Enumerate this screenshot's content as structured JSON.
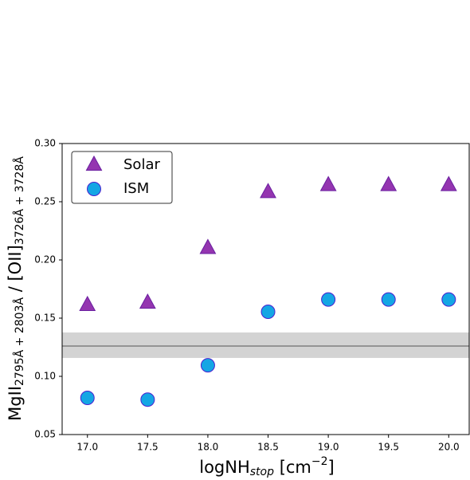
{
  "chart_data": {
    "type": "scatter",
    "xlabel_parts": [
      {
        "text": "logNH"
      },
      {
        "text": "stop",
        "style": "sub"
      },
      {
        "text": " [cm"
      },
      {
        "text": "−2",
        "style": "sup"
      },
      {
        "text": "]"
      }
    ],
    "ylabel_parts": [
      {
        "text": "MgII"
      },
      {
        "text": "2795Å + 2803Å",
        "style": "sub"
      },
      {
        "text": " / [OII]"
      },
      {
        "text": "3726Å + 3728Å",
        "style": "sub"
      }
    ],
    "xlim": [
      16.79,
      20.17
    ],
    "ylim": [
      0.05,
      0.3
    ],
    "xticks": [
      {
        "value": 17.0,
        "label": "17.0"
      },
      {
        "value": 17.5,
        "label": "17.5"
      },
      {
        "value": 18.0,
        "label": "18.0"
      },
      {
        "value": 18.5,
        "label": "18.5"
      },
      {
        "value": 19.0,
        "label": "19.0"
      },
      {
        "value": 19.5,
        "label": "19.5"
      },
      {
        "value": 20.0,
        "label": "20.0"
      }
    ],
    "yticks": [
      {
        "value": 0.05,
        "label": "0.05"
      },
      {
        "value": 0.1,
        "label": "0.10"
      },
      {
        "value": 0.15,
        "label": "0.15"
      },
      {
        "value": 0.2,
        "label": "0.20"
      },
      {
        "value": 0.25,
        "label": "0.25"
      },
      {
        "value": 0.3,
        "label": "0.30"
      }
    ],
    "x": [
      17.0,
      17.5,
      18.0,
      18.5,
      19.0,
      19.5,
      20.0
    ],
    "series": [
      {
        "name": "Solar",
        "marker": "triangle",
        "color": "#9435b0",
        "edgecolor": "#6a1fa0",
        "values": [
          0.161,
          0.163,
          0.21,
          0.258,
          0.264,
          0.264,
          0.264
        ]
      },
      {
        "name": "ISM",
        "marker": "circle",
        "color": "#14a6e4",
        "edgecolor": "#4a20d0",
        "values": [
          0.0815,
          0.08,
          0.1095,
          0.1555,
          0.166,
          0.166,
          0.166
        ]
      }
    ],
    "reference_line": 0.126,
    "reference_band": [
      0.1158,
      0.1377
    ],
    "legend": "upper left"
  }
}
